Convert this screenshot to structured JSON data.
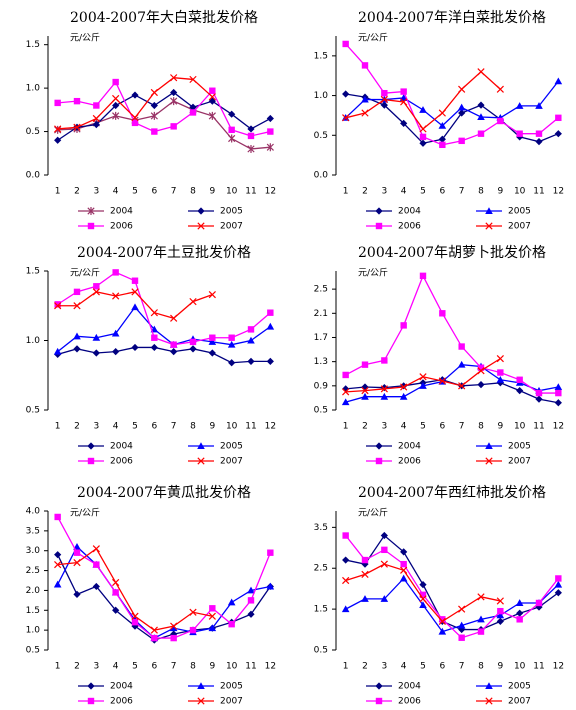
{
  "chart_data": [
    {
      "type": "line",
      "title": "2004-2007年大白菜批发价格",
      "y_label": "元/公斤",
      "categories": [
        "1",
        "2",
        "3",
        "4",
        "5",
        "6",
        "7",
        "8",
        "9",
        "10",
        "11",
        "12"
      ],
      "ylim": [
        0,
        1.6
      ],
      "yticks": [
        {
          "value": 0,
          "label": "0.0"
        },
        0.5,
        {
          "value": 1,
          "label": "1.0"
        },
        1.5
      ],
      "series": [
        {
          "name": "2004",
          "color": "#993366",
          "marker": "star",
          "values": [
            0.52,
            0.53,
            0.6,
            0.68,
            0.63,
            0.68,
            0.85,
            0.75,
            0.68,
            0.42,
            0.3,
            0.32
          ]
        },
        {
          "name": "2005",
          "color": "#000080",
          "marker": "diamond",
          "values": [
            0.4,
            0.55,
            0.58,
            0.8,
            0.92,
            0.8,
            0.95,
            0.78,
            0.85,
            0.7,
            0.53,
            0.65
          ]
        },
        {
          "name": "2006",
          "color": "#ff00ff",
          "marker": "square",
          "values": [
            0.83,
            0.85,
            0.8,
            1.07,
            0.6,
            0.5,
            0.56,
            0.72,
            0.97,
            0.52,
            0.45,
            0.5
          ]
        },
        {
          "name": "2007",
          "color": "#ff0000",
          "marker": "x",
          "values": [
            0.53,
            0.55,
            0.65,
            0.88,
            0.66,
            0.95,
            1.12,
            1.1,
            0.9,
            null,
            null,
            null
          ]
        }
      ]
    },
    {
      "type": "line",
      "title": "2004-2007年洋白菜批发价格",
      "y_label": "元/公斤",
      "categories": [
        "1",
        "2",
        "3",
        "4",
        "5",
        "6",
        "7",
        "8",
        "9",
        "10",
        "11",
        "12"
      ],
      "ylim": [
        0,
        1.75
      ],
      "yticks": [
        {
          "value": 0,
          "label": "0.0"
        },
        0.5,
        {
          "value": 1,
          "label": "1.0"
        },
        1.5
      ],
      "series": [
        {
          "name": "2004",
          "color": "#000080",
          "marker": "diamond",
          "values": [
            1.02,
            0.98,
            0.88,
            0.65,
            0.4,
            0.45,
            0.78,
            0.88,
            0.7,
            0.48,
            0.42,
            0.52
          ]
        },
        {
          "name": "2005",
          "color": "#0000ff",
          "marker": "triangle",
          "values": [
            0.72,
            0.95,
            0.95,
            0.97,
            0.82,
            0.62,
            0.85,
            0.73,
            0.72,
            0.87,
            0.87,
            1.18
          ]
        },
        {
          "name": "2006",
          "color": "#ff00ff",
          "marker": "square",
          "values": [
            1.65,
            1.38,
            1.03,
            1.05,
            0.48,
            0.38,
            0.43,
            0.52,
            0.68,
            0.52,
            0.52,
            0.72
          ]
        },
        {
          "name": "2007",
          "color": "#ff0000",
          "marker": "x",
          "values": [
            0.72,
            0.78,
            0.95,
            0.92,
            0.58,
            0.78,
            1.08,
            1.3,
            1.08,
            null,
            null,
            null
          ]
        }
      ]
    },
    {
      "type": "line",
      "title": "2004-2007年土豆批发价格",
      "y_label": "元/公斤",
      "categories": [
        "1",
        "2",
        "3",
        "4",
        "5",
        "6",
        "7",
        "8",
        "9",
        "10",
        "11",
        "12"
      ],
      "ylim": [
        0.5,
        1.5
      ],
      "yticks": [
        0.5,
        {
          "value": 1,
          "label": "1.0"
        },
        1.5
      ],
      "series": [
        {
          "name": "2004",
          "color": "#000080",
          "marker": "diamond",
          "values": [
            0.9,
            0.94,
            0.91,
            0.92,
            0.95,
            0.95,
            0.92,
            0.94,
            0.91,
            0.84,
            0.85,
            0.85
          ]
        },
        {
          "name": "2005",
          "color": "#0000ff",
          "marker": "triangle",
          "values": [
            0.92,
            1.03,
            1.02,
            1.05,
            1.24,
            1.08,
            0.97,
            1.01,
            0.99,
            0.97,
            1.0,
            1.1
          ]
        },
        {
          "name": "2006",
          "color": "#ff00ff",
          "marker": "square",
          "values": [
            1.26,
            1.35,
            1.39,
            1.49,
            1.43,
            1.02,
            0.97,
            0.99,
            1.02,
            1.02,
            1.08,
            1.2
          ]
        },
        {
          "name": "2007",
          "color": "#ff0000",
          "marker": "x",
          "values": [
            1.25,
            1.25,
            1.35,
            1.32,
            1.35,
            1.2,
            1.16,
            1.28,
            1.33,
            null,
            null,
            null
          ]
        }
      ]
    },
    {
      "type": "line",
      "title": "2004-2007年胡萝卜批发价格",
      "y_label": "元/公斤",
      "categories": [
        "1",
        "2",
        "3",
        "4",
        "5",
        "6",
        "7",
        "8",
        "9",
        "10",
        "11",
        "12"
      ],
      "ylim": [
        0.5,
        2.8
      ],
      "yticks": [
        0.5,
        0.9,
        1.3,
        1.7,
        2.1,
        2.5
      ],
      "series": [
        {
          "name": "2004",
          "color": "#000080",
          "marker": "diamond",
          "values": [
            0.85,
            0.88,
            0.87,
            0.9,
            0.95,
            1.0,
            0.9,
            0.92,
            0.95,
            0.82,
            0.68,
            0.62
          ]
        },
        {
          "name": "2005",
          "color": "#0000ff",
          "marker": "triangle",
          "values": [
            0.63,
            0.72,
            0.72,
            0.72,
            0.9,
            0.97,
            1.25,
            1.22,
            1.0,
            0.95,
            0.82,
            0.88
          ]
        },
        {
          "name": "2006",
          "color": "#ff00ff",
          "marker": "square",
          "values": [
            1.08,
            1.25,
            1.32,
            1.9,
            2.72,
            2.1,
            1.55,
            1.2,
            1.12,
            1.0,
            0.78,
            0.78
          ]
        },
        {
          "name": "2007",
          "color": "#ff0000",
          "marker": "x",
          "values": [
            0.8,
            0.82,
            0.85,
            0.88,
            1.05,
            0.98,
            0.9,
            1.15,
            1.35,
            null,
            null,
            null
          ]
        }
      ]
    },
    {
      "type": "line",
      "title": "2004-2007年黄瓜批发价格",
      "y_label": "元/公斤",
      "categories": [
        "1",
        "2",
        "3",
        "4",
        "5",
        "6",
        "7",
        "8",
        "9",
        "10",
        "11",
        "12"
      ],
      "ylim": [
        0.5,
        4.0
      ],
      "yticks": [
        0.5,
        {
          "value": 1,
          "label": "1.0"
        },
        1.5,
        {
          "value": 2,
          "label": "2.0"
        },
        2.5,
        {
          "value": 3,
          "label": "3.0"
        },
        3.5,
        {
          "value": 4,
          "label": "4.0"
        }
      ],
      "series": [
        {
          "name": "2004",
          "color": "#000080",
          "marker": "diamond",
          "values": [
            2.9,
            1.9,
            2.1,
            1.5,
            1.1,
            0.75,
            0.9,
            1.0,
            1.05,
            1.2,
            1.4,
            2.1
          ]
        },
        {
          "name": "2005",
          "color": "#0000ff",
          "marker": "triangle",
          "values": [
            2.15,
            3.1,
            2.65,
            1.95,
            1.25,
            0.8,
            1.05,
            0.95,
            1.05,
            1.7,
            2.0,
            2.1
          ]
        },
        {
          "name": "2006",
          "color": "#ff00ff",
          "marker": "square",
          "values": [
            3.85,
            2.95,
            2.65,
            1.95,
            1.2,
            0.8,
            0.8,
            1.0,
            1.55,
            1.15,
            1.75,
            2.95
          ]
        },
        {
          "name": "2007",
          "color": "#ff0000",
          "marker": "x",
          "values": [
            2.65,
            2.7,
            3.05,
            2.2,
            1.35,
            1.0,
            1.1,
            1.45,
            1.35,
            null,
            null,
            null
          ]
        }
      ]
    },
    {
      "type": "line",
      "title": "2004-2007年西红柿批发价格",
      "y_label": "元/公斤",
      "categories": [
        "1",
        "2",
        "3",
        "4",
        "5",
        "6",
        "7",
        "8",
        "9",
        "10",
        "11",
        "12"
      ],
      "ylim": [
        0.5,
        3.9
      ],
      "yticks": [
        0.5,
        1.5,
        2.5,
        3.5
      ],
      "series": [
        {
          "name": "2004",
          "color": "#000080",
          "marker": "diamond",
          "values": [
            2.7,
            2.6,
            3.3,
            2.9,
            2.1,
            1.2,
            1.0,
            1.0,
            1.2,
            1.4,
            1.55,
            1.9
          ]
        },
        {
          "name": "2005",
          "color": "#0000ff",
          "marker": "triangle",
          "values": [
            1.5,
            1.75,
            1.75,
            2.25,
            1.6,
            0.95,
            1.1,
            1.25,
            1.35,
            1.65,
            1.65,
            2.1
          ]
        },
        {
          "name": "2006",
          "color": "#ff00ff",
          "marker": "square",
          "values": [
            3.3,
            2.7,
            2.95,
            2.6,
            1.85,
            1.25,
            0.8,
            0.95,
            1.45,
            1.25,
            1.65,
            2.25
          ]
        },
        {
          "name": "2007",
          "color": "#ff0000",
          "marker": "x",
          "values": [
            2.2,
            2.35,
            2.6,
            2.45,
            1.75,
            1.2,
            1.5,
            1.8,
            1.7,
            null,
            null,
            null
          ]
        }
      ]
    }
  ]
}
